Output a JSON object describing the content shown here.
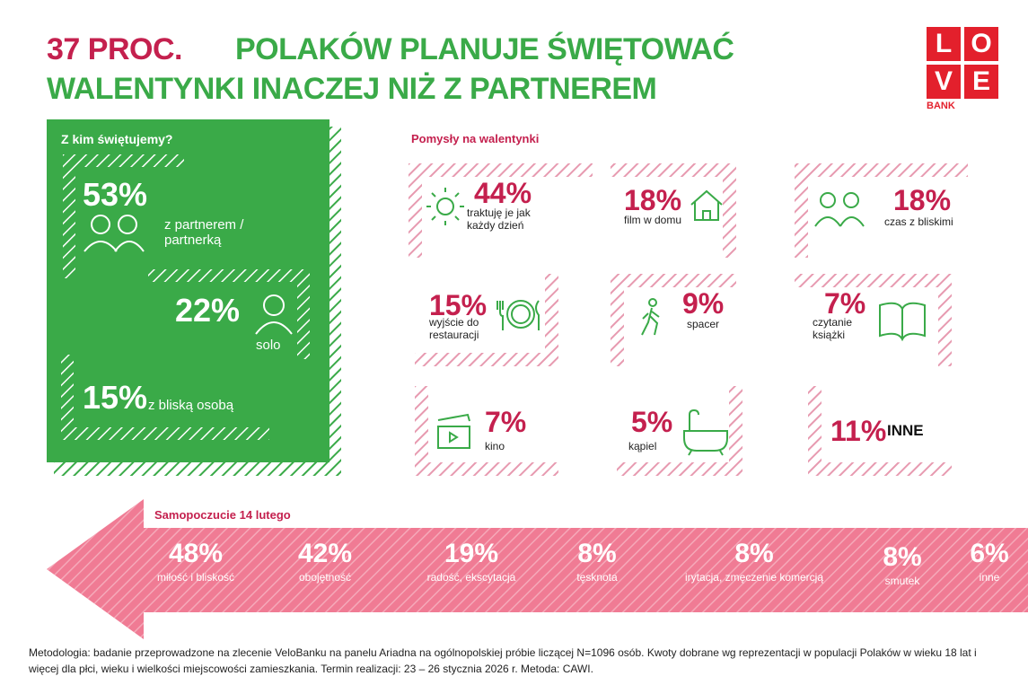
{
  "header": {
    "highlight": "37 PROC.",
    "line1": "POLAKÓW PLANUJE ŚWIĘTOWAĆ",
    "line2": "WALENTYNKI INACZEJ NIŻ Z PARTNEREM"
  },
  "logo": {
    "letters": [
      "L",
      "O",
      "V",
      "E"
    ],
    "bank": "BANK"
  },
  "who": {
    "title": "Z kim świętujemy?",
    "items": [
      {
        "value": "53%",
        "label": "z partnerem / partnerką"
      },
      {
        "value": "22%",
        "label": "solo"
      },
      {
        "value": "15%",
        "label": "z bliską osobą"
      }
    ]
  },
  "ideas": {
    "title": "Pomysły na walentynki",
    "items": [
      {
        "value": "44%",
        "label": "traktuję je jak każdy dzień"
      },
      {
        "value": "18%",
        "label": "film w domu"
      },
      {
        "value": "18%",
        "label": "czas z bliskimi"
      },
      {
        "value": "15%",
        "label": "wyjście do restauracji"
      },
      {
        "value": "9%",
        "label": "spacer"
      },
      {
        "value": "7%",
        "label": "czytanie książki"
      },
      {
        "value": "7%",
        "label": "kino"
      },
      {
        "value": "5%",
        "label": "kąpiel"
      },
      {
        "value": "11%",
        "label": "INNE"
      }
    ]
  },
  "mood": {
    "title": "Samopoczucie 14 lutego",
    "items": [
      {
        "value": "48%",
        "label": "miłość i bliskość"
      },
      {
        "value": "42%",
        "label": "obojętność"
      },
      {
        "value": "19%",
        "label": "radość, ekscytacja"
      },
      {
        "value": "8%",
        "label": "tęsknota"
      },
      {
        "value": "8%",
        "label": "irytacja, zmęczenie komercją"
      },
      {
        "value": "8%",
        "label": "smutek"
      },
      {
        "value": "6%",
        "label": "inne"
      }
    ]
  },
  "footer": {
    "methodology": "Metodologia: badanie przeprowadzone na zlecenie VeloBanku na panelu Ariadna na ogólnopolskiej próbie liczącej N=1096 osób. Kwoty dobrane wg reprezentacji w populacji Polaków w wieku 18 lat i więcej dla płci, wieku i wielkości miejscowości zamieszkania. Termin realizacji: 23 – 26 stycznia 2026 r. Metoda: CAWI."
  }
}
